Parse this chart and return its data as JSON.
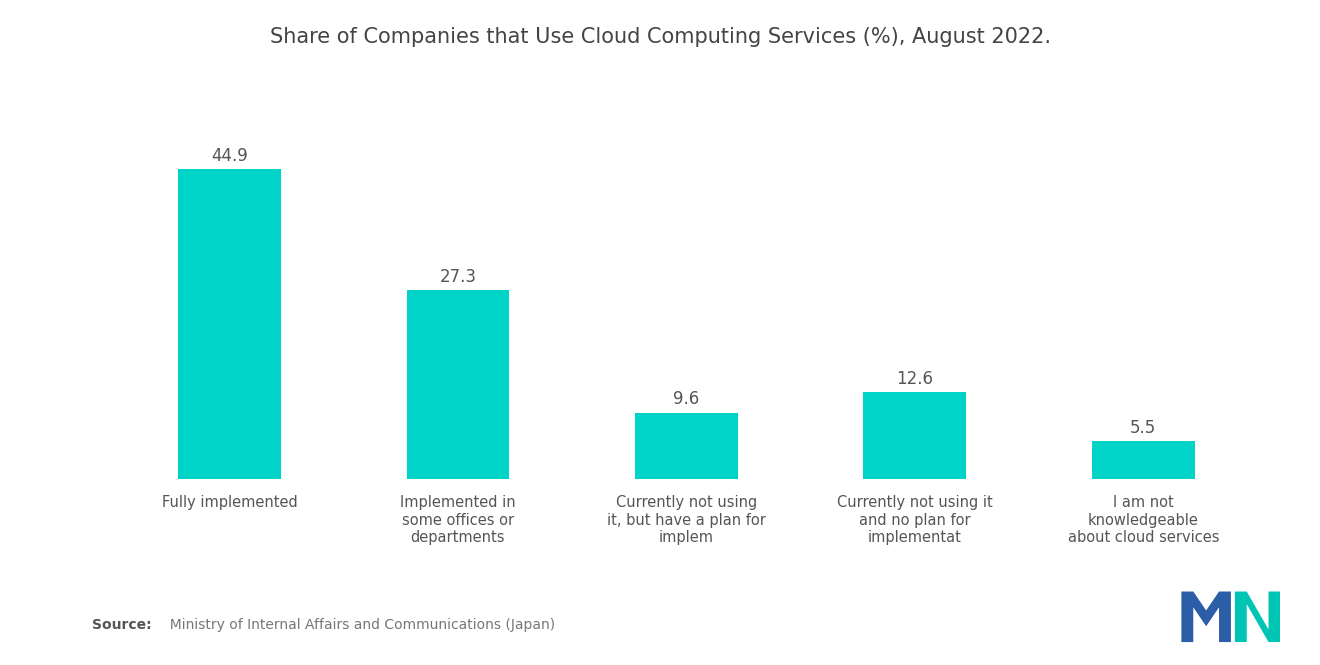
{
  "title": "Share of Companies that Use Cloud Computing Services (%), August 2022.",
  "categories": [
    "Fully implemented",
    "Implemented in\nsome offices or\ndepartments",
    "Currently not using\nit, but have a plan for\nimplem",
    "Currently not using it\nand no plan for\nimplementat",
    "I am not\nknowledgeable\nabout cloud services"
  ],
  "values": [
    44.9,
    27.3,
    9.6,
    12.6,
    5.5
  ],
  "bar_color": "#00D4C8",
  "background_color": "#FFFFFF",
  "title_fontsize": 15,
  "value_fontsize": 12,
  "label_fontsize": 10.5,
  "source_label": "Source:",
  "source_text": "  Ministry of Internal Affairs and Communications (Japan)",
  "ylim": [
    0,
    52
  ],
  "bar_width": 0.45
}
